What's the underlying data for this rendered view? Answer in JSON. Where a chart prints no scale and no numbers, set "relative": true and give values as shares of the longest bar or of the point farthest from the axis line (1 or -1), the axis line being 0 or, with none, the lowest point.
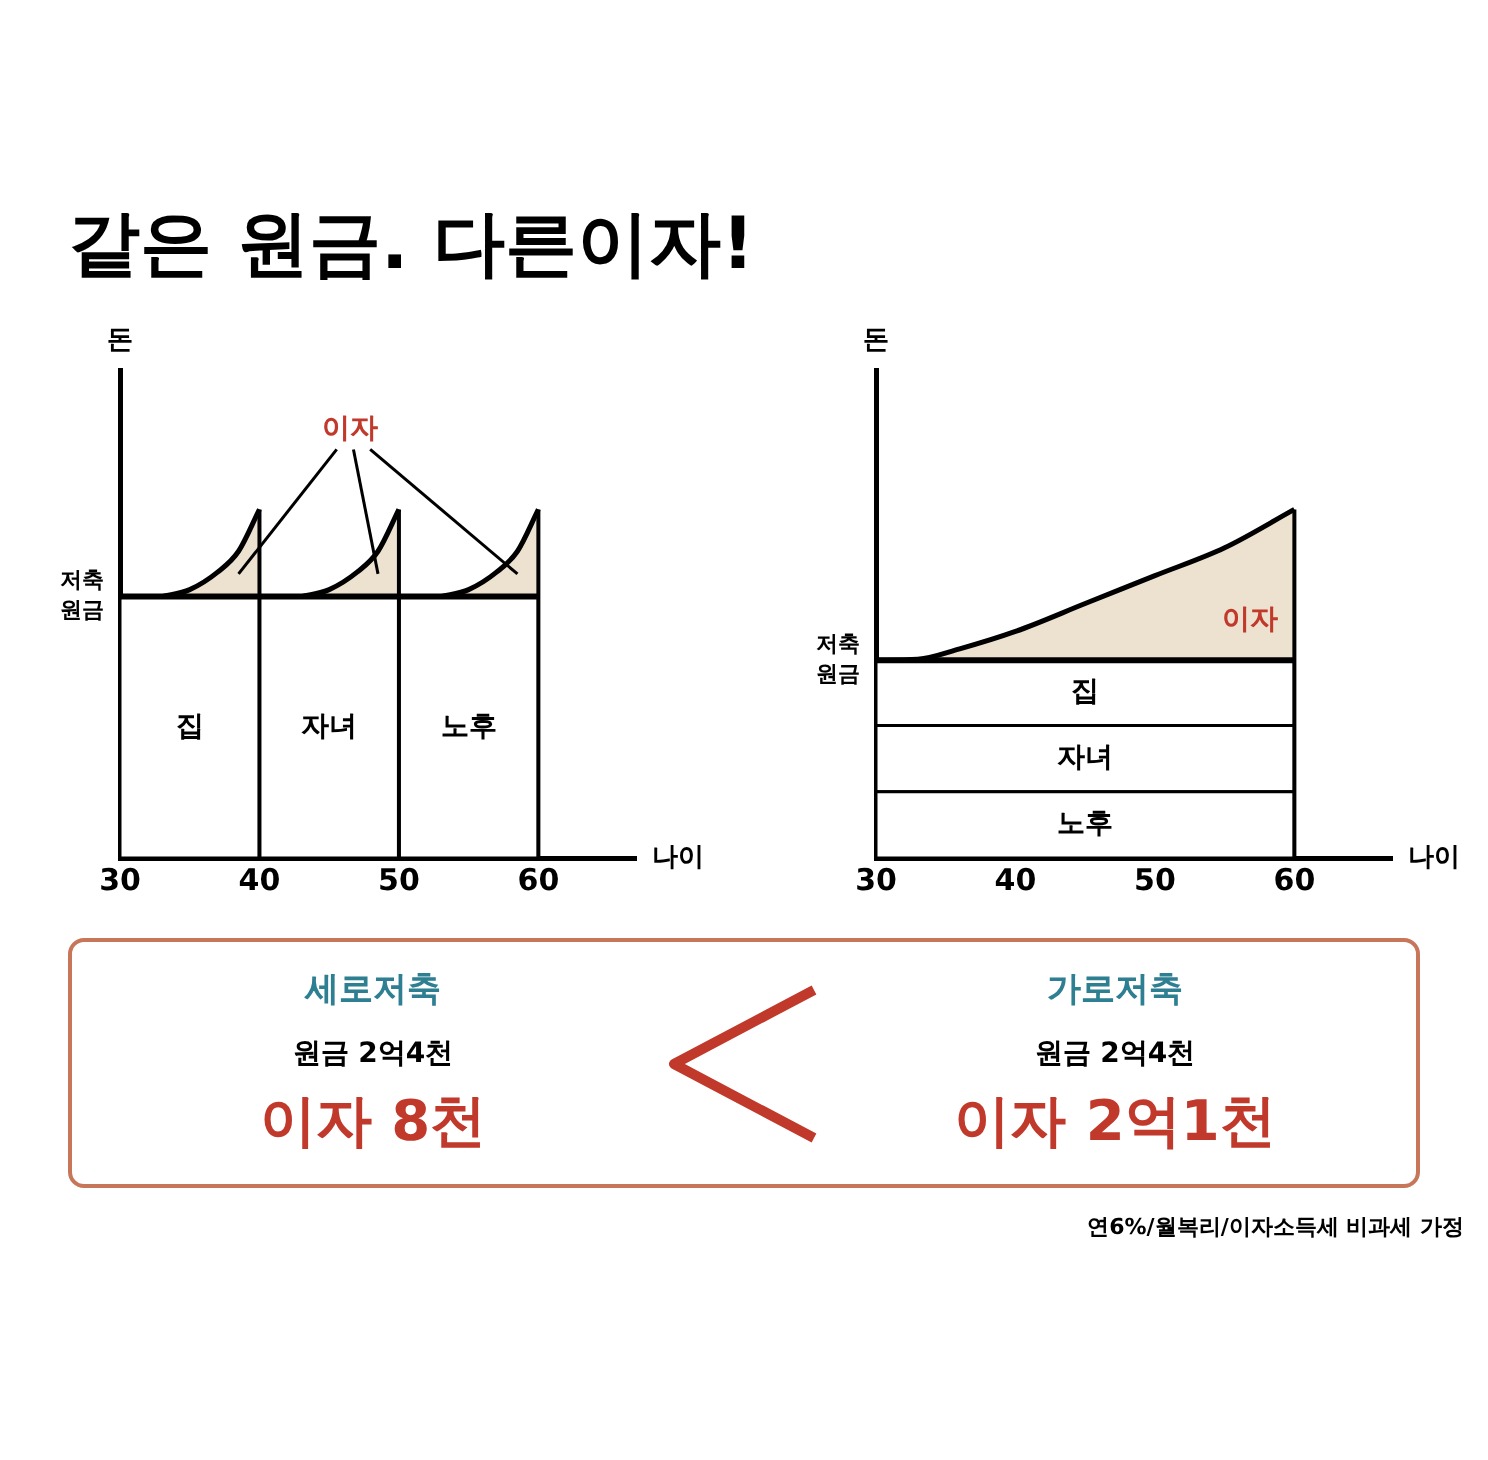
{
  "chart_data": [
    {
      "type": "area",
      "title": "같은 원금. 다른이자!",
      "relative": true,
      "xlabel": "나이",
      "ylabel": "돈",
      "x": [
        33,
        35,
        37,
        38.5,
        40,
        null,
        43,
        45,
        47,
        48.5,
        50,
        null,
        53,
        55,
        57,
        58.5,
        60
      ],
      "xlim": [
        30,
        67
      ],
      "xticks": [
        30,
        40,
        50,
        60
      ],
      "series": [
        {
          "color": "#000000",
          "values": [
            0.75,
            0.77,
            0.82,
            0.88,
            1.0,
            null,
            0.75,
            0.77,
            0.82,
            0.88,
            1.0,
            null,
            0.75,
            0.77,
            0.82,
            0.88,
            1.0
          ]
        }
      ],
      "ref_lines": [
        {
          "axis": "y",
          "value": 0.75,
          "label": "저축\n원금"
        },
        {
          "axis": "x",
          "value": 40
        },
        {
          "axis": "x",
          "value": 50
        },
        {
          "axis": "x",
          "value": 60
        }
      ],
      "bands": [
        {
          "axis": "x",
          "from": 30,
          "to": 40,
          "label": "집",
          "color": "#ffffff"
        },
        {
          "axis": "x",
          "from": 40,
          "to": 50,
          "label": "자녀",
          "color": "#ffffff"
        },
        {
          "axis": "x",
          "from": 50,
          "to": 60,
          "label": "노후",
          "color": "#ffffff"
        }
      ],
      "annotations": [
        "이자"
      ]
    },
    {
      "type": "area",
      "relative": true,
      "xlabel": "나이",
      "ylabel": "돈",
      "x": [
        30,
        33,
        36,
        40,
        45,
        50,
        55,
        60
      ],
      "xlim": [
        30,
        67
      ],
      "xticks": [
        30,
        40,
        50,
        60
      ],
      "series": [
        {
          "color": "#000000",
          "values": [
            0.567,
            0.57,
            0.6,
            0.65,
            0.73,
            0.81,
            0.89,
            1.0
          ]
        }
      ],
      "ref_lines": [
        {
          "axis": "y",
          "value": 0.567,
          "label": "저축\n원금"
        },
        {
          "axis": "x",
          "value": 60
        }
      ],
      "bands": [
        {
          "axis": "y",
          "from": 0.38,
          "to": 0.567,
          "label": "집",
          "color": "#ffffff"
        },
        {
          "axis": "y",
          "from": 0.19,
          "to": 0.38,
          "label": "자녀",
          "color": "#ffffff"
        },
        {
          "axis": "y",
          "from": 0,
          "to": 0.19,
          "label": "노후",
          "color": "#ffffff"
        }
      ],
      "annotations": [
        "이자"
      ]
    },
    {
      "type": "other",
      "annotations": [
        "세로저축",
        "원금 2억4천",
        "이자 8천",
        "가로저축",
        "원금 2억4천",
        "이자 2억1천",
        "연6%/월복리/이자소득세 비과세 가정"
      ]
    }
  ]
}
